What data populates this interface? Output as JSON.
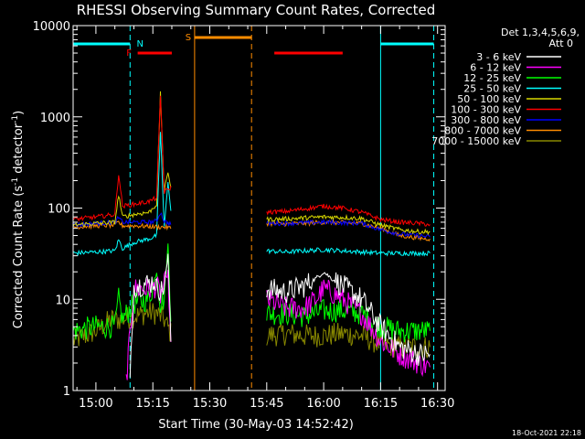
{
  "chart_data": {
    "type": "line",
    "title": "RHESSI Observing Summary Count Rates, Corrected",
    "xlabel": "Start Time (30-May-03 14:52:42)",
    "ylabel": "Corrected Count Rate (s^-1 detector^-1)",
    "ylabel_parts": {
      "main": "Corrected Count Rate (s",
      "sup1": "-1",
      "mid": " detector",
      "sup2": "-1",
      "end": ")"
    },
    "y_scale": "log",
    "ylim": [
      1,
      10000
    ],
    "x_unit": "minutes",
    "xlim_minutes": [
      894,
      992
    ],
    "x_ticks": [
      {
        "m": 900,
        "label": "15:00"
      },
      {
        "m": 915,
        "label": "15:15"
      },
      {
        "m": 930,
        "label": "15:30"
      },
      {
        "m": 945,
        "label": "15:45"
      },
      {
        "m": 960,
        "label": "16:00"
      },
      {
        "m": 975,
        "label": "16:15"
      },
      {
        "m": 990,
        "label": "16:30"
      }
    ],
    "y_ticks": [
      {
        "v": 1,
        "label": "1"
      },
      {
        "v": 10,
        "label": "10"
      },
      {
        "v": 100,
        "label": "100"
      },
      {
        "v": 1000,
        "label": "1000"
      },
      {
        "v": 10000,
        "label": "10000"
      }
    ],
    "legend": {
      "placement": "right",
      "header1": "Det 1,3,4,5,6,9,",
      "header2": "Att 0",
      "entries": [
        {
          "label": "3 - 6 keV",
          "color": "#ffffff"
        },
        {
          "label": "6 - 12 keV",
          "color": "#ff00ff"
        },
        {
          "label": "12 - 25 keV",
          "color": "#00ff00"
        },
        {
          "label": "25 - 50 keV",
          "color": "#00ffff"
        },
        {
          "label": "50 - 100 keV",
          "color": "#d7d700"
        },
        {
          "label": "100 - 300 keV",
          "color": "#ff0000"
        },
        {
          "label": "300 - 800 keV",
          "color": "#0000ff"
        },
        {
          "label": "800 - 7000 keV",
          "color": "#ff8c00"
        },
        {
          "label": "7000 - 15000 keV",
          "color": "#888800"
        }
      ]
    },
    "series": [
      {
        "color": "#888800",
        "points": [
          [
            894,
            3.5
          ],
          [
            900,
            4.5
          ],
          [
            904,
            6
          ],
          [
            906,
            6
          ],
          [
            910,
            6.5
          ],
          [
            914,
            7.2
          ],
          [
            916,
            7
          ],
          [
            917,
            6.5
          ],
          [
            918,
            6
          ],
          [
            920,
            4
          ],
          [
            945,
            4
          ],
          [
            950,
            4.2
          ],
          [
            955,
            4
          ],
          [
            960,
            4
          ],
          [
            965,
            4.2
          ],
          [
            970,
            4
          ],
          [
            975,
            3.2
          ],
          [
            980,
            3
          ],
          [
            985,
            3
          ],
          [
            988,
            3
          ]
        ]
      },
      {
        "color": "#00ff00",
        "points": [
          [
            894,
            4.5
          ],
          [
            900,
            5
          ],
          [
            905,
            5
          ],
          [
            906,
            10
          ],
          [
            907,
            6
          ],
          [
            910,
            9
          ],
          [
            914,
            10
          ],
          [
            916,
            20
          ],
          [
            917,
            9
          ],
          [
            918,
            10
          ],
          [
            919,
            40
          ],
          [
            920,
            4
          ],
          [
            945,
            7
          ],
          [
            950,
            7
          ],
          [
            955,
            6.5
          ],
          [
            960,
            7.5
          ],
          [
            965,
            7.5
          ],
          [
            970,
            7
          ],
          [
            975,
            5
          ],
          [
            980,
            4.5
          ],
          [
            985,
            4.5
          ],
          [
            988,
            4.5
          ]
        ]
      },
      {
        "color": "#ff00ff",
        "points": [
          [
            908,
            1.3
          ],
          [
            910,
            13
          ],
          [
            914,
            13
          ],
          [
            916,
            14
          ],
          [
            917,
            11
          ],
          [
            918,
            14
          ],
          [
            919,
            20
          ],
          [
            920,
            1.5
          ],
          [
            945,
            10
          ],
          [
            950,
            8
          ],
          [
            955,
            8
          ],
          [
            958,
            10
          ],
          [
            960,
            13
          ],
          [
            962,
            12
          ],
          [
            965,
            10
          ],
          [
            970,
            7
          ],
          [
            975,
            3.5
          ],
          [
            980,
            2.5
          ],
          [
            985,
            2
          ],
          [
            988,
            1.8
          ]
        ]
      },
      {
        "color": "#ffffff",
        "points": [
          [
            909,
            1.2
          ],
          [
            910,
            14
          ],
          [
            914,
            15
          ],
          [
            916,
            16
          ],
          [
            917,
            12
          ],
          [
            918,
            14
          ],
          [
            919,
            30
          ],
          [
            920,
            2
          ],
          [
            945,
            13
          ],
          [
            950,
            12
          ],
          [
            955,
            14
          ],
          [
            958,
            17
          ],
          [
            960,
            20
          ],
          [
            962,
            17
          ],
          [
            965,
            14
          ],
          [
            970,
            10
          ],
          [
            975,
            5
          ],
          [
            980,
            3
          ],
          [
            985,
            2.5
          ],
          [
            988,
            2.5
          ]
        ]
      },
      {
        "color": "#00ffff",
        "points": [
          [
            894,
            32
          ],
          [
            900,
            33
          ],
          [
            905,
            34
          ],
          [
            906,
            45
          ],
          [
            907,
            36
          ],
          [
            910,
            42
          ],
          [
            914,
            46
          ],
          [
            916,
            50
          ],
          [
            917,
            700
          ],
          [
            918,
            60
          ],
          [
            919,
            200
          ],
          [
            920,
            70
          ],
          [
            945,
            34
          ],
          [
            950,
            33
          ],
          [
            955,
            34
          ],
          [
            960,
            35
          ],
          [
            965,
            34
          ],
          [
            970,
            33
          ],
          [
            975,
            32
          ],
          [
            980,
            32
          ],
          [
            985,
            32
          ],
          [
            988,
            32
          ]
        ]
      },
      {
        "color": "#ff8c00",
        "points": [
          [
            894,
            62
          ],
          [
            900,
            64
          ],
          [
            905,
            65
          ],
          [
            906,
            70
          ],
          [
            907,
            64
          ],
          [
            910,
            64
          ],
          [
            914,
            63
          ],
          [
            916,
            62
          ],
          [
            918,
            62
          ],
          [
            920,
            60
          ],
          [
            945,
            68
          ],
          [
            950,
            67
          ],
          [
            955,
            68
          ],
          [
            960,
            70
          ],
          [
            965,
            69
          ],
          [
            970,
            68
          ],
          [
            975,
            60
          ],
          [
            980,
            50
          ],
          [
            985,
            47
          ],
          [
            988,
            46
          ]
        ]
      },
      {
        "color": "#0000ff",
        "points": [
          [
            894,
            65
          ],
          [
            900,
            68
          ],
          [
            905,
            70
          ],
          [
            906,
            78
          ],
          [
            907,
            70
          ],
          [
            910,
            70
          ],
          [
            914,
            70
          ],
          [
            916,
            72
          ],
          [
            917,
            90
          ],
          [
            918,
            72
          ],
          [
            920,
            66
          ],
          [
            945,
            68
          ],
          [
            950,
            68
          ],
          [
            955,
            69
          ],
          [
            960,
            70
          ],
          [
            965,
            69
          ],
          [
            970,
            68
          ],
          [
            975,
            58
          ],
          [
            980,
            52
          ],
          [
            985,
            50
          ],
          [
            988,
            48
          ]
        ]
      },
      {
        "color": "#d7d700",
        "points": [
          [
            894,
            65
          ],
          [
            900,
            68
          ],
          [
            905,
            70
          ],
          [
            906,
            140
          ],
          [
            907,
            80
          ],
          [
            910,
            85
          ],
          [
            914,
            90
          ],
          [
            916,
            110
          ],
          [
            917,
            1800
          ],
          [
            918,
            150
          ],
          [
            919,
            250
          ],
          [
            920,
            150
          ],
          [
            945,
            75
          ],
          [
            950,
            76
          ],
          [
            955,
            78
          ],
          [
            960,
            80
          ],
          [
            965,
            79
          ],
          [
            970,
            77
          ],
          [
            975,
            65
          ],
          [
            980,
            58
          ],
          [
            985,
            55
          ],
          [
            988,
            55
          ]
        ]
      },
      {
        "color": "#ff0000",
        "points": [
          [
            894,
            75
          ],
          [
            900,
            80
          ],
          [
            905,
            85
          ],
          [
            906,
            240
          ],
          [
            907,
            105
          ],
          [
            910,
            110
          ],
          [
            914,
            118
          ],
          [
            916,
            130
          ],
          [
            917,
            1700
          ],
          [
            918,
            150
          ],
          [
            919,
            160
          ],
          [
            920,
            170
          ],
          [
            945,
            90
          ],
          [
            950,
            92
          ],
          [
            955,
            98
          ],
          [
            960,
            105
          ],
          [
            965,
            100
          ],
          [
            970,
            90
          ],
          [
            975,
            75
          ],
          [
            980,
            70
          ],
          [
            985,
            68
          ],
          [
            988,
            66
          ]
        ]
      }
    ],
    "annotations": {
      "cyan_bars": [
        [
          894,
          909
        ],
        [
          975,
          989
        ]
      ],
      "cyan_dashed": [
        909,
        989
      ],
      "cyan_solid": [
        894,
        975
      ],
      "cyan_label": {
        "text": "N",
        "at": 910
      },
      "orange_bar": [
        926,
        941
      ],
      "orange_solid": 926,
      "orange_dashed": 941,
      "orange_label": {
        "text": "S",
        "at": 925
      },
      "red_bars": [
        [
          911,
          920
        ],
        [
          947,
          965
        ]
      ],
      "red_label": {
        "text": "F",
        "at": 909
      }
    },
    "grid": false
  },
  "footer_date": "18-Oct-2021 22:18"
}
